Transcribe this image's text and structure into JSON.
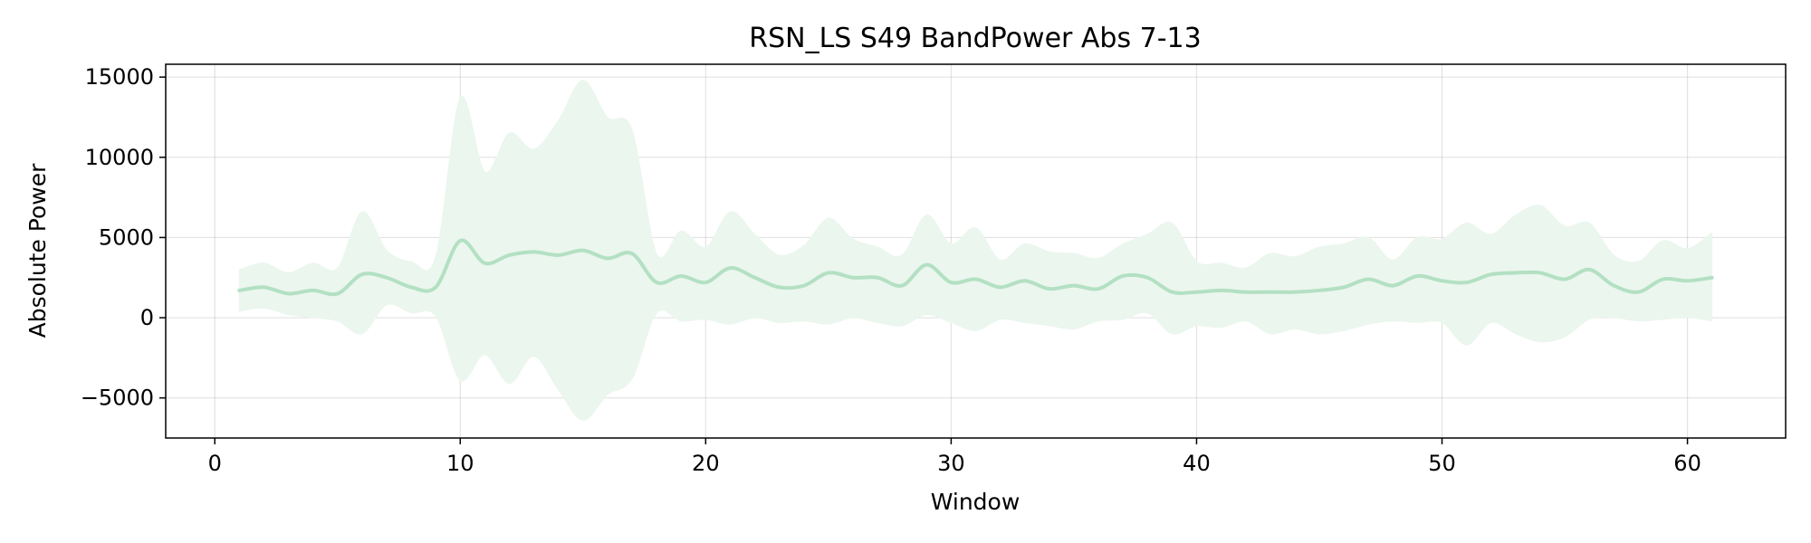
{
  "chart_data": {
    "type": "line",
    "title": "RSN_LS S49 BandPower Abs 7-13",
    "xlabel": "Window",
    "ylabel": "Absolute Power",
    "xlim": [
      -2,
      64
    ],
    "ylim": [
      -7500,
      15800
    ],
    "xticks": [
      0,
      10,
      20,
      30,
      40,
      50,
      60
    ],
    "yticks": [
      -5000,
      0,
      5000,
      10000,
      15000
    ],
    "ytick_labels": [
      "−5000",
      "0",
      "5000",
      "10000",
      "15000"
    ],
    "grid": true,
    "line_color": "#b3e0c3",
    "band_color": "#ebf6ee",
    "series": [
      {
        "x": [
          1,
          2,
          3,
          4,
          5,
          6,
          7,
          8,
          9,
          10,
          11,
          12,
          13,
          14,
          15,
          16,
          17,
          18,
          19,
          20,
          21,
          22,
          23,
          24,
          25,
          26,
          27,
          28,
          29,
          30,
          31,
          32,
          33,
          34,
          35,
          36,
          37,
          38,
          39,
          40,
          41,
          42,
          43,
          44,
          45,
          46,
          47,
          48,
          49,
          50,
          51,
          52,
          53,
          54,
          55,
          56,
          57,
          58,
          59,
          60,
          61
        ],
        "mean": [
          1700,
          1900,
          1500,
          1700,
          1500,
          2700,
          2500,
          1900,
          1900,
          4800,
          3400,
          3900,
          4100,
          3900,
          4200,
          3700,
          4000,
          2200,
          2600,
          2200,
          3100,
          2500,
          1900,
          2000,
          2800,
          2500,
          2500,
          2000,
          3300,
          2200,
          2400,
          1900,
          2300,
          1800,
          2000,
          1800,
          2600,
          2500,
          1600,
          1600,
          1700,
          1600,
          1600,
          1600,
          1700,
          1900,
          2400,
          2000,
          2600,
          2300,
          2200,
          2700,
          2800,
          2800,
          2400,
          3000,
          2000,
          1600,
          2400,
          2300,
          2500
        ],
        "upper": [
          3000,
          3400,
          2800,
          3400,
          3100,
          6600,
          4200,
          3500,
          3800,
          13700,
          9100,
          11500,
          10500,
          12300,
          14800,
          12500,
          11700,
          4000,
          5400,
          4400,
          6600,
          5200,
          3900,
          4500,
          6200,
          4900,
          4400,
          3900,
          6400,
          4600,
          5600,
          3600,
          4600,
          4100,
          4000,
          3700,
          4600,
          5200,
          5900,
          3500,
          3400,
          3100,
          4000,
          3800,
          4400,
          4600,
          5000,
          3600,
          5000,
          4900,
          5900,
          5200,
          6400,
          7000,
          5700,
          5900,
          3900,
          3500,
          4800,
          4300,
          5300
        ],
        "lower": [
          400,
          600,
          200,
          0,
          -200,
          -1000,
          800,
          300,
          100,
          -3900,
          -2300,
          -4100,
          -2400,
          -4500,
          -6400,
          -4800,
          -3800,
          300,
          -200,
          -100,
          -400,
          0,
          -300,
          -200,
          -400,
          0,
          -300,
          -500,
          200,
          -300,
          -800,
          -100,
          -300,
          -500,
          -700,
          -200,
          -100,
          300,
          -1000,
          -500,
          -600,
          -200,
          -1000,
          -700,
          -1000,
          -800,
          -400,
          -200,
          -300,
          -300,
          -1700,
          -300,
          -1000,
          -1500,
          -1200,
          -100,
          0,
          -200,
          -100,
          0,
          -200
        ]
      }
    ]
  }
}
